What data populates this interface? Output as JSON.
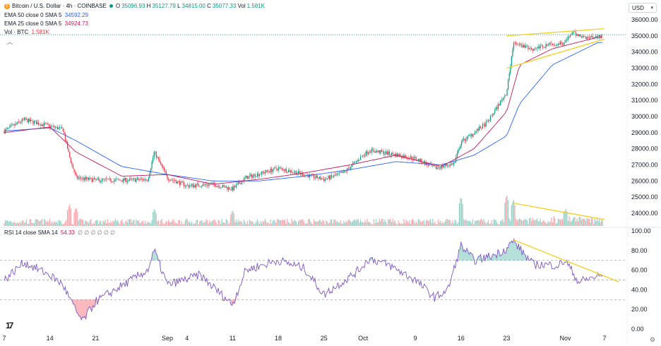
{
  "header": {
    "symbol": "Bitcoin / U.S. Dollar · 4h · COINBASE",
    "ohlc": {
      "o_label": "O",
      "o": "35096.93",
      "h_label": "H",
      "h": "35127.79",
      "l_label": "L",
      "l": "34815.00",
      "c_label": "C",
      "c": "35077.33",
      "vol_label": "Vol",
      "vol": "1.581K"
    },
    "indicators": [
      {
        "label": "EMA 50 close 0 SMA 5",
        "value": "34592.29",
        "color": "#2962ff"
      },
      {
        "label": "EMA 25 close 0 SMA 5",
        "value": "34924.73",
        "color": "#c2185b"
      },
      {
        "label": "Vol · BTC",
        "value": "1.581K",
        "color": "#f23645"
      }
    ],
    "currency": "USD",
    "icon": "bitcoin-icon",
    "logo_text": "17"
  },
  "rsi_legend": {
    "label": "RSI 14 close SMA 14",
    "value": "54.33",
    "extras": "∅ ∅ ∅ ∅ ∅ ∅"
  },
  "colors": {
    "up": "#089981",
    "down": "#f23645",
    "ema50": "#2962ff",
    "ema25": "#c2185b",
    "rsi": "#7e57c2",
    "trend": "#f2d22e"
  },
  "chart_data": [
    {
      "type": "candlestick",
      "title": "Bitcoin / U.S. Dollar · 4h · COINBASE",
      "ylim": [
        24000,
        36000
      ],
      "y_ticks": [
        "24000.00",
        "25000.00",
        "26000.00",
        "27000.00",
        "28000.00",
        "29000.00",
        "30000.00",
        "31000.00",
        "32000.00",
        "33000.00",
        "34000.00",
        "35000.00",
        "36000.00"
      ],
      "x_ticks": [
        "7",
        "14",
        "21",
        "Sep",
        "4",
        "11",
        "18",
        "25",
        "Oct",
        "9",
        "16",
        "23",
        "Nov",
        "7"
      ],
      "price_path_x": [
        "Aug 7",
        "Aug 10",
        "Aug 14",
        "Aug 16",
        "Aug 17",
        "Aug 18",
        "Aug 21",
        "Aug 25",
        "Aug 29",
        "Aug 30",
        "Sep 1",
        "Sep 4",
        "Sep 8",
        "Sep 11",
        "Sep 13",
        "Sep 18",
        "Sep 21",
        "Sep 25",
        "Sep 28",
        "Oct 1",
        "Oct 2",
        "Oct 5",
        "Oct 9",
        "Oct 12",
        "Oct 15",
        "Oct 16",
        "Oct 20",
        "Oct 23",
        "Oct 24",
        "Oct 27",
        "Oct 30",
        "Nov 1",
        "Nov 2",
        "Nov 4",
        "Nov 6"
      ],
      "price_path_y": [
        29100,
        29800,
        29400,
        29200,
        27500,
        26200,
        26050,
        26050,
        26100,
        27800,
        26200,
        25700,
        25800,
        25500,
        26200,
        26800,
        26500,
        26100,
        26500,
        27600,
        27900,
        27700,
        27400,
        26800,
        27100,
        28400,
        29600,
        31500,
        34500,
        34200,
        34500,
        34600,
        35200,
        34900,
        35000
      ],
      "ema50_x": [
        "Aug 7",
        "Aug 14",
        "Aug 18",
        "Aug 25",
        "Sep 1",
        "Sep 8",
        "Sep 15",
        "Sep 22",
        "Sep 29",
        "Oct 6",
        "Oct 13",
        "Oct 18",
        "Oct 23",
        "Oct 25",
        "Oct 30",
        "Nov 6"
      ],
      "ema50_y": [
        29100,
        29300,
        28500,
        26900,
        26400,
        26000,
        26000,
        26300,
        26700,
        27200,
        27000,
        27600,
        28800,
        30800,
        33200,
        34590
      ],
      "ema25_x": [
        "Aug 7",
        "Aug 14",
        "Aug 18",
        "Aug 25",
        "Sep 1",
        "Sep 8",
        "Sep 15",
        "Sep 22",
        "Sep 29",
        "Oct 6",
        "Oct 13",
        "Oct 18",
        "Oct 23",
        "Oct 25",
        "Oct 30",
        "Nov 6"
      ],
      "ema25_y": [
        29000,
        29350,
        27800,
        26300,
        26400,
        25800,
        26100,
        26500,
        27000,
        27600,
        26900,
        28000,
        30300,
        33200,
        34200,
        34920
      ],
      "trendlines": [
        {
          "x": [
            "Oct 23",
            "Nov 7"
          ],
          "y": [
            35000,
            35450
          ]
        },
        {
          "x": [
            "Oct 23",
            "Nov 7"
          ],
          "y": [
            33000,
            34800
          ]
        }
      ],
      "current_price": 35077.33
    },
    {
      "type": "bar",
      "title": "Vol · BTC",
      "value": "1.581K",
      "peaks_x": [
        "Aug 17",
        "Aug 18",
        "Aug 30",
        "Sep 11",
        "Oct 16",
        "Oct 23",
        "Oct 24",
        "Nov 1"
      ],
      "peaks_rel": [
        0.7,
        0.6,
        0.55,
        0.5,
        0.95,
        1.0,
        0.8,
        0.5
      ],
      "trendline": {
        "x": [
          "Oct 24",
          "Nov 7"
        ],
        "rel": [
          0.72,
          0.2
        ]
      }
    },
    {
      "type": "line",
      "title": "RSI 14 close SMA 14",
      "value": "54.33",
      "ylim": [
        0,
        100
      ],
      "y_ticks": [
        "0.00",
        "20.00",
        "40.00",
        "60.00",
        "80.00",
        "100.00"
      ],
      "levels": [
        70,
        50,
        30
      ],
      "x": [
        "Aug 7",
        "Aug 10",
        "Aug 14",
        "Aug 16",
        "Aug 18",
        "Aug 19",
        "Aug 21",
        "Aug 24",
        "Aug 29",
        "Aug 30",
        "Sep 1",
        "Sep 6",
        "Sep 11",
        "Sep 13",
        "Sep 18",
        "Sep 22",
        "Sep 25",
        "Sep 30",
        "Oct 2",
        "Oct 5",
        "Oct 9",
        "Oct 12",
        "Oct 14",
        "Oct 16",
        "Oct 18",
        "Oct 21",
        "Oct 23",
        "Oct 24",
        "Oct 27",
        "Oct 31",
        "Nov 1",
        "Nov 3",
        "Nov 6"
      ],
      "y": [
        50,
        68,
        55,
        45,
        18,
        8,
        28,
        40,
        60,
        80,
        45,
        55,
        25,
        60,
        70,
        62,
        35,
        58,
        72,
        65,
        50,
        32,
        40,
        85,
        70,
        75,
        82,
        90,
        66,
        65,
        70,
        48,
        54
      ],
      "trendline": {
        "x": [
          "Oct 24",
          "Nov 7"
        ],
        "y": [
          91,
          54
        ]
      }
    }
  ]
}
